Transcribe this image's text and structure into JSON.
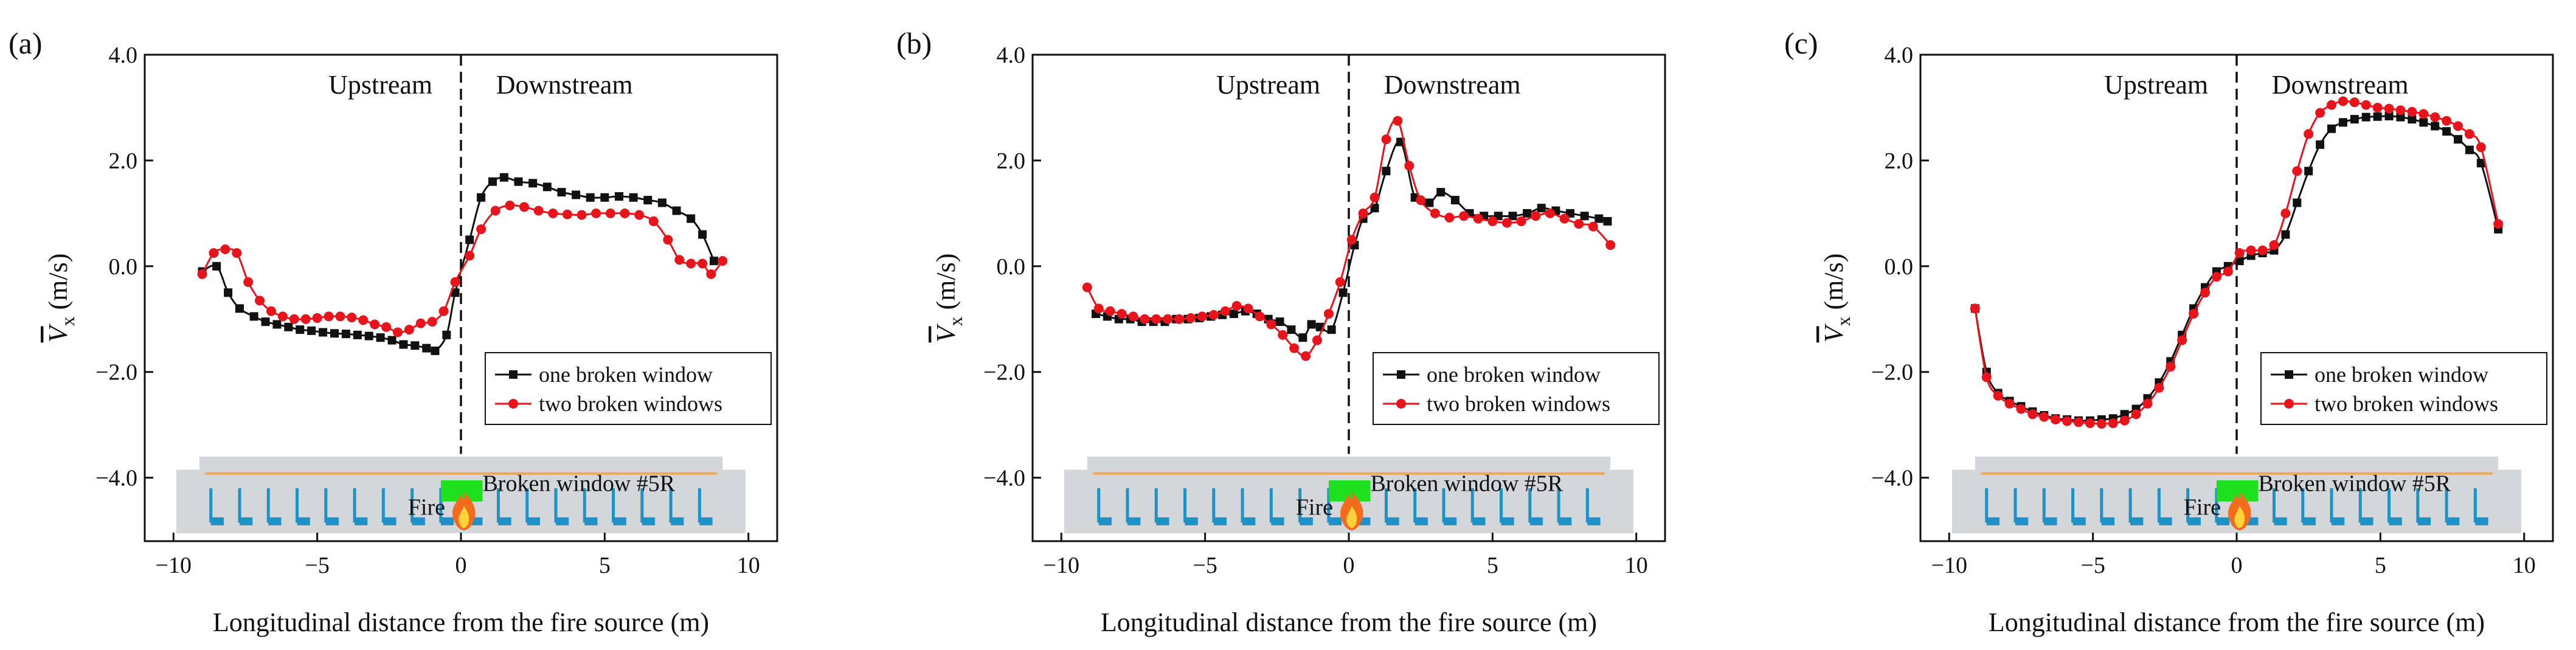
{
  "chart_data": [
    {
      "type": "line",
      "panel_label": "(a)",
      "xlabel": "Longitudinal distance from the fire source (m)",
      "ylabel": "V̄x (m/s)",
      "ylabel_main": "V",
      "ylabel_sub": "x",
      "ylabel_unit": " (m/s)",
      "xlim": [
        -11,
        11
      ],
      "ylim": [
        -5.2,
        4.0
      ],
      "xticks": [
        -10,
        -5,
        0,
        5,
        10
      ],
      "yticks": [
        4.0,
        2.0,
        0.0,
        -2.0,
        -4.0
      ],
      "xtick_labels": [
        "−10",
        "−5",
        "0",
        "5",
        "10"
      ],
      "ytick_labels": [
        "4.0",
        "2.0",
        "0.0",
        "−2.0",
        "−4.0"
      ],
      "upstream_label": "Upstream",
      "downstream_label": "Downstream",
      "divider_x": 0,
      "legend": [
        "one broken window",
        "two broken windows"
      ],
      "annotation_window": "Broken window #5R",
      "annotation_fire": "Fire",
      "series": [
        {
          "name": "one broken window",
          "color": "#111111",
          "marker": "square",
          "x": [
            -9.0,
            -8.5,
            -8.1,
            -7.7,
            -7.2,
            -6.8,
            -6.4,
            -6.0,
            -5.6,
            -5.2,
            -4.8,
            -4.4,
            -4.0,
            -3.6,
            -3.2,
            -2.8,
            -2.4,
            -2.0,
            -1.6,
            -1.2,
            -0.9,
            -0.5,
            -0.2,
            0.3,
            0.7,
            1.1,
            1.5,
            2.0,
            2.5,
            3.0,
            3.5,
            4.0,
            4.5,
            5.0,
            5.5,
            6.0,
            6.5,
            7.0,
            7.5,
            8.0,
            8.4,
            8.8
          ],
          "y": [
            -0.1,
            0.0,
            -0.5,
            -0.8,
            -0.95,
            -1.05,
            -1.1,
            -1.15,
            -1.2,
            -1.22,
            -1.25,
            -1.27,
            -1.28,
            -1.3,
            -1.32,
            -1.35,
            -1.4,
            -1.48,
            -1.5,
            -1.55,
            -1.6,
            -1.3,
            -0.5,
            0.5,
            1.3,
            1.6,
            1.68,
            1.6,
            1.57,
            1.5,
            1.4,
            1.35,
            1.3,
            1.3,
            1.32,
            1.3,
            1.25,
            1.2,
            1.05,
            0.9,
            0.6,
            0.1
          ]
        },
        {
          "name": "two broken windows",
          "color": "#e8131b",
          "marker": "circle",
          "x": [
            -9.0,
            -8.6,
            -8.2,
            -7.8,
            -7.4,
            -7.0,
            -6.6,
            -6.2,
            -5.8,
            -5.4,
            -5.0,
            -4.6,
            -4.2,
            -3.8,
            -3.4,
            -3.0,
            -2.6,
            -2.2,
            -1.8,
            -1.4,
            -1.0,
            -0.6,
            -0.2,
            0.3,
            0.7,
            1.2,
            1.7,
            2.2,
            2.7,
            3.2,
            3.7,
            4.2,
            4.7,
            5.2,
            5.7,
            6.2,
            6.7,
            7.2,
            7.6,
            8.0,
            8.4,
            8.7,
            9.1
          ],
          "y": [
            -0.15,
            0.25,
            0.32,
            0.25,
            -0.3,
            -0.65,
            -0.85,
            -0.95,
            -1.0,
            -1.0,
            -0.98,
            -0.95,
            -0.95,
            -0.97,
            -1.02,
            -1.1,
            -1.15,
            -1.25,
            -1.2,
            -1.08,
            -1.05,
            -0.85,
            -0.3,
            0.2,
            0.7,
            1.05,
            1.15,
            1.12,
            1.05,
            1.0,
            0.98,
            0.97,
            1.0,
            1.0,
            1.0,
            0.97,
            0.85,
            0.5,
            0.12,
            0.05,
            0.05,
            -0.15,
            0.1
          ]
        }
      ]
    },
    {
      "type": "line",
      "panel_label": "(b)",
      "xlabel": "Longitudinal distance from the fire source (m)",
      "ylabel": "V̄x (m/s)",
      "ylabel_main": "V",
      "ylabel_sub": "x",
      "ylabel_unit": " (m/s)",
      "xlim": [
        -11,
        11
      ],
      "ylim": [
        -5.2,
        4.0
      ],
      "xticks": [
        -10,
        -5,
        0,
        5,
        10
      ],
      "yticks": [
        4.0,
        2.0,
        0.0,
        -2.0,
        -4.0
      ],
      "xtick_labels": [
        "−10",
        "−5",
        "0",
        "5",
        "10"
      ],
      "ytick_labels": [
        "4.0",
        "2.0",
        "0.0",
        "−2.0",
        "−4.0"
      ],
      "upstream_label": "Upstream",
      "downstream_label": "Downstream",
      "divider_x": 0,
      "legend": [
        "one broken window",
        "two broken windows"
      ],
      "annotation_window": "Broken window #5R",
      "annotation_fire": "Fire",
      "series": [
        {
          "name": "one broken window",
          "color": "#111111",
          "marker": "square",
          "x": [
            -8.8,
            -8.4,
            -8.0,
            -7.6,
            -7.2,
            -6.8,
            -6.4,
            -6.0,
            -5.6,
            -5.2,
            -4.8,
            -4.4,
            -4.0,
            -3.6,
            -3.2,
            -2.8,
            -2.4,
            -2.0,
            -1.6,
            -1.3,
            -1.0,
            -0.6,
            -0.2,
            0.2,
            0.5,
            0.9,
            1.3,
            1.8,
            2.3,
            2.8,
            3.2,
            3.7,
            4.2,
            4.7,
            5.2,
            5.7,
            6.2,
            6.7,
            7.2,
            7.7,
            8.2,
            8.7,
            9.0
          ],
          "y": [
            -0.9,
            -0.95,
            -1.0,
            -1.0,
            -1.05,
            -1.05,
            -1.05,
            -1.0,
            -1.0,
            -0.98,
            -0.95,
            -0.92,
            -0.9,
            -0.85,
            -0.9,
            -1.0,
            -1.05,
            -1.2,
            -1.35,
            -1.1,
            -1.15,
            -1.2,
            -0.5,
            0.4,
            0.9,
            1.1,
            1.8,
            2.35,
            1.3,
            1.2,
            1.4,
            1.25,
            1.0,
            0.95,
            0.95,
            0.95,
            1.0,
            1.1,
            1.05,
            1.0,
            0.95,
            0.9,
            0.85
          ]
        },
        {
          "name": "two broken windows",
          "color": "#e8131b",
          "marker": "circle",
          "x": [
            -9.1,
            -8.7,
            -8.3,
            -7.9,
            -7.5,
            -7.1,
            -6.7,
            -6.3,
            -5.9,
            -5.5,
            -5.1,
            -4.7,
            -4.3,
            -3.9,
            -3.5,
            -3.1,
            -2.7,
            -2.3,
            -1.9,
            -1.5,
            -1.1,
            -0.7,
            -0.3,
            0.1,
            0.5,
            0.9,
            1.3,
            1.7,
            2.1,
            2.5,
            3.0,
            3.5,
            4.0,
            4.5,
            5.0,
            5.5,
            6.0,
            6.5,
            7.0,
            7.5,
            8.0,
            8.5,
            9.1
          ],
          "y": [
            -0.4,
            -0.8,
            -0.85,
            -0.9,
            -0.95,
            -1.0,
            -1.0,
            -1.0,
            -1.0,
            -0.98,
            -0.95,
            -0.92,
            -0.85,
            -0.75,
            -0.8,
            -0.95,
            -1.1,
            -1.3,
            -1.55,
            -1.7,
            -1.4,
            -0.9,
            -0.3,
            0.5,
            1.0,
            1.3,
            2.4,
            2.75,
            1.9,
            1.25,
            1.0,
            0.92,
            0.95,
            0.9,
            0.85,
            0.82,
            0.85,
            0.95,
            1.0,
            0.9,
            0.8,
            0.75,
            0.4
          ]
        }
      ]
    },
    {
      "type": "line",
      "panel_label": "(c)",
      "xlabel": "Longitudinal distance from the fire source (m)",
      "ylabel": "V̄x (m/s)",
      "ylabel_main": "V",
      "ylabel_sub": "x",
      "ylabel_unit": " (m/s)",
      "xlim": [
        -11,
        11
      ],
      "ylim": [
        -5.2,
        4.0
      ],
      "xticks": [
        -10,
        -5,
        0,
        5,
        10
      ],
      "yticks": [
        4.0,
        2.0,
        0.0,
        -2.0,
        -4.0
      ],
      "xtick_labels": [
        "−10",
        "−5",
        "0",
        "5",
        "10"
      ],
      "ytick_labels": [
        "4.0",
        "2.0",
        "0.0",
        "−2.0",
        "−4.0"
      ],
      "upstream_label": "Upstream",
      "downstream_label": "Downstream",
      "divider_x": 0,
      "legend": [
        "one broken window",
        "two broken windows"
      ],
      "annotation_window": "Broken window #5R",
      "annotation_fire": "Fire",
      "series": [
        {
          "name": "one broken window",
          "color": "#111111",
          "marker": "square",
          "x": [
            -9.1,
            -8.7,
            -8.3,
            -7.9,
            -7.5,
            -7.1,
            -6.7,
            -6.3,
            -5.9,
            -5.5,
            -5.1,
            -4.7,
            -4.3,
            -3.9,
            -3.5,
            -3.1,
            -2.7,
            -2.3,
            -1.9,
            -1.5,
            -1.1,
            -0.7,
            -0.3,
            0.1,
            0.5,
            0.9,
            1.3,
            1.7,
            2.1,
            2.5,
            2.9,
            3.3,
            3.7,
            4.1,
            4.5,
            4.9,
            5.3,
            5.7,
            6.1,
            6.5,
            6.9,
            7.3,
            7.7,
            8.1,
            8.5,
            9.1
          ],
          "y": [
            -0.8,
            -2.0,
            -2.4,
            -2.55,
            -2.65,
            -2.75,
            -2.82,
            -2.88,
            -2.9,
            -2.92,
            -2.92,
            -2.9,
            -2.88,
            -2.8,
            -2.7,
            -2.5,
            -2.2,
            -1.8,
            -1.3,
            -0.8,
            -0.4,
            -0.1,
            0.0,
            0.1,
            0.2,
            0.25,
            0.3,
            0.6,
            1.2,
            1.8,
            2.3,
            2.6,
            2.72,
            2.78,
            2.82,
            2.83,
            2.84,
            2.82,
            2.78,
            2.72,
            2.65,
            2.55,
            2.4,
            2.2,
            1.95,
            0.7
          ]
        },
        {
          "name": "two broken windows",
          "color": "#e8131b",
          "marker": "circle",
          "x": [
            -9.1,
            -8.7,
            -8.3,
            -7.9,
            -7.5,
            -7.1,
            -6.7,
            -6.3,
            -5.9,
            -5.5,
            -5.1,
            -4.7,
            -4.3,
            -3.9,
            -3.5,
            -3.1,
            -2.7,
            -2.3,
            -1.9,
            -1.5,
            -1.1,
            -0.7,
            -0.3,
            0.1,
            0.5,
            0.9,
            1.3,
            1.7,
            2.1,
            2.5,
            2.9,
            3.3,
            3.7,
            4.1,
            4.5,
            4.9,
            5.3,
            5.7,
            6.1,
            6.5,
            6.9,
            7.3,
            7.7,
            8.1,
            8.5,
            9.1
          ],
          "y": [
            -0.8,
            -2.1,
            -2.45,
            -2.6,
            -2.7,
            -2.8,
            -2.85,
            -2.9,
            -2.93,
            -2.95,
            -2.97,
            -2.98,
            -2.97,
            -2.92,
            -2.8,
            -2.6,
            -2.3,
            -1.9,
            -1.4,
            -0.9,
            -0.5,
            -0.2,
            -0.1,
            0.25,
            0.3,
            0.3,
            0.4,
            1.0,
            1.8,
            2.5,
            2.9,
            3.05,
            3.12,
            3.1,
            3.05,
            3.0,
            2.98,
            2.95,
            2.92,
            2.88,
            2.82,
            2.75,
            2.65,
            2.5,
            2.25,
            0.8
          ]
        }
      ]
    }
  ]
}
